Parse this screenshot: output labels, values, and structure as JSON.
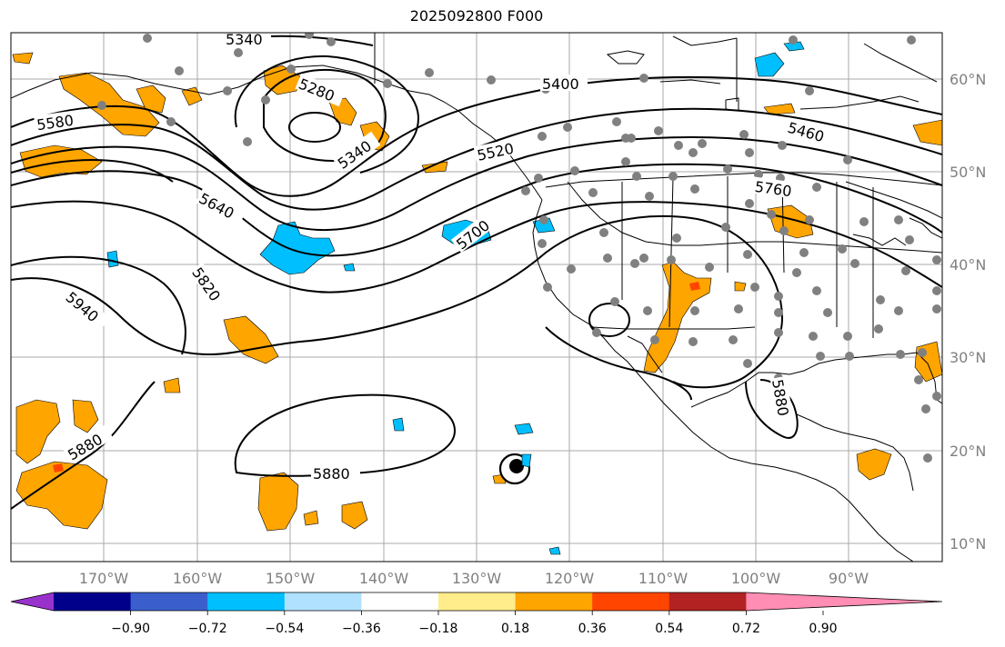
{
  "title": "2025092800 F000",
  "lat_labels": [
    "60°N",
    "50°N",
    "40°N",
    "30°N",
    "20°N",
    "10°N"
  ],
  "lon_labels": [
    "170°W",
    "160°W",
    "150°W",
    "140°W",
    "130°W",
    "120°W",
    "110°W",
    "100°W",
    "90°W"
  ],
  "contour_labels": [
    "5340",
    "5280",
    "5580",
    "5400",
    "5340",
    "5520",
    "5460",
    "5640",
    "5760",
    "5700",
    "5820",
    "5940",
    "5880",
    "5880",
    "5880"
  ],
  "colorbar": {
    "ticks": [
      "−0.90",
      "−0.72",
      "−0.54",
      "−0.36",
      "−0.18",
      "0.18",
      "0.36",
      "0.54",
      "0.72",
      "0.90"
    ],
    "colors": [
      "#9932cc",
      "#00008b",
      "#3a5fcd",
      "#00bfff",
      "#b0e2ff",
      "#ffffff",
      "#ffec8b",
      "#ffa500",
      "#ff4500",
      "#b22222",
      "#ff8db4"
    ]
  },
  "style": {
    "land_line": "#000000",
    "grid": "#a9a9a9",
    "contour": "#000000",
    "pos_fill": "#ffa500",
    "pos_strong": "#ff4500",
    "neg_fill": "#00bfff",
    "station_dot": "#808080",
    "storm_marker": "#000000"
  }
}
